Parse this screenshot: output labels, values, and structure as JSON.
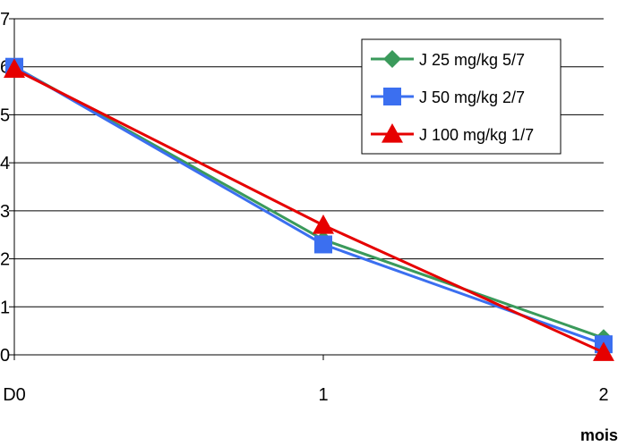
{
  "chart_data": {
    "type": "line",
    "categories": [
      "D0",
      "1",
      "2"
    ],
    "xlabel": "mois",
    "ylabel": "",
    "ylim": [
      0,
      7
    ],
    "yticks": [
      0,
      1,
      2,
      3,
      4,
      5,
      6,
      7
    ],
    "grid": true,
    "legend_position": "top-right",
    "series": [
      {
        "name": "J 25 mg/kg 5/7",
        "values": [
          6.0,
          2.4,
          0.35
        ],
        "color": "#3a9a5b",
        "marker": "diamond"
      },
      {
        "name": "J 50 mg/kg 2/7",
        "values": [
          6.0,
          2.3,
          0.22
        ],
        "color": "#3b6ff0",
        "marker": "square"
      },
      {
        "name": "J 100 mg/kg 1/7",
        "values": [
          5.95,
          2.7,
          0.05
        ],
        "color": "#e60000",
        "marker": "triangle"
      }
    ]
  }
}
